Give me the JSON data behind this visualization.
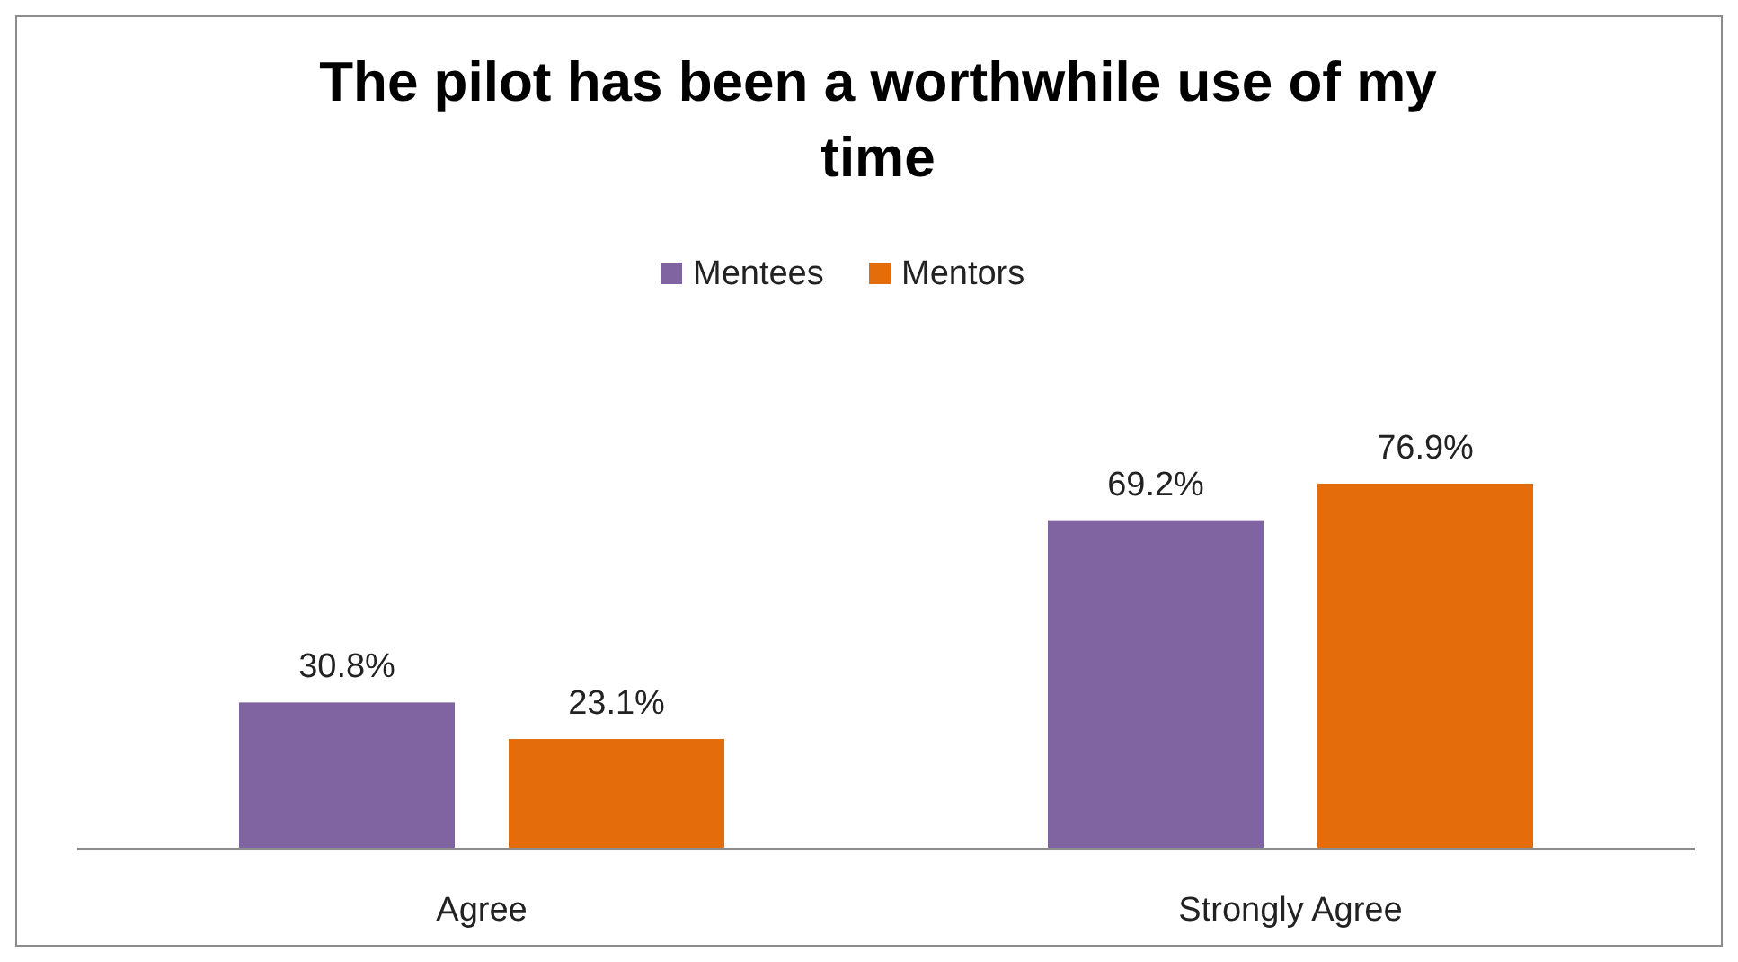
{
  "chart_data": {
    "type": "bar",
    "title": "The pilot has been a worthwhile use of my time",
    "categories": [
      "Agree",
      "Strongly Agree"
    ],
    "series": [
      {
        "name": "Mentees",
        "color": "#8064a2",
        "values": [
          30.8,
          69.2
        ],
        "value_labels": [
          "30.8%",
          "69.2%"
        ]
      },
      {
        "name": "Mentors",
        "color": "#e46c0a",
        "values": [
          23.1,
          76.9
        ],
        "value_labels": [
          "23.1%",
          "76.9%"
        ]
      }
    ],
    "legend": "top"
  }
}
